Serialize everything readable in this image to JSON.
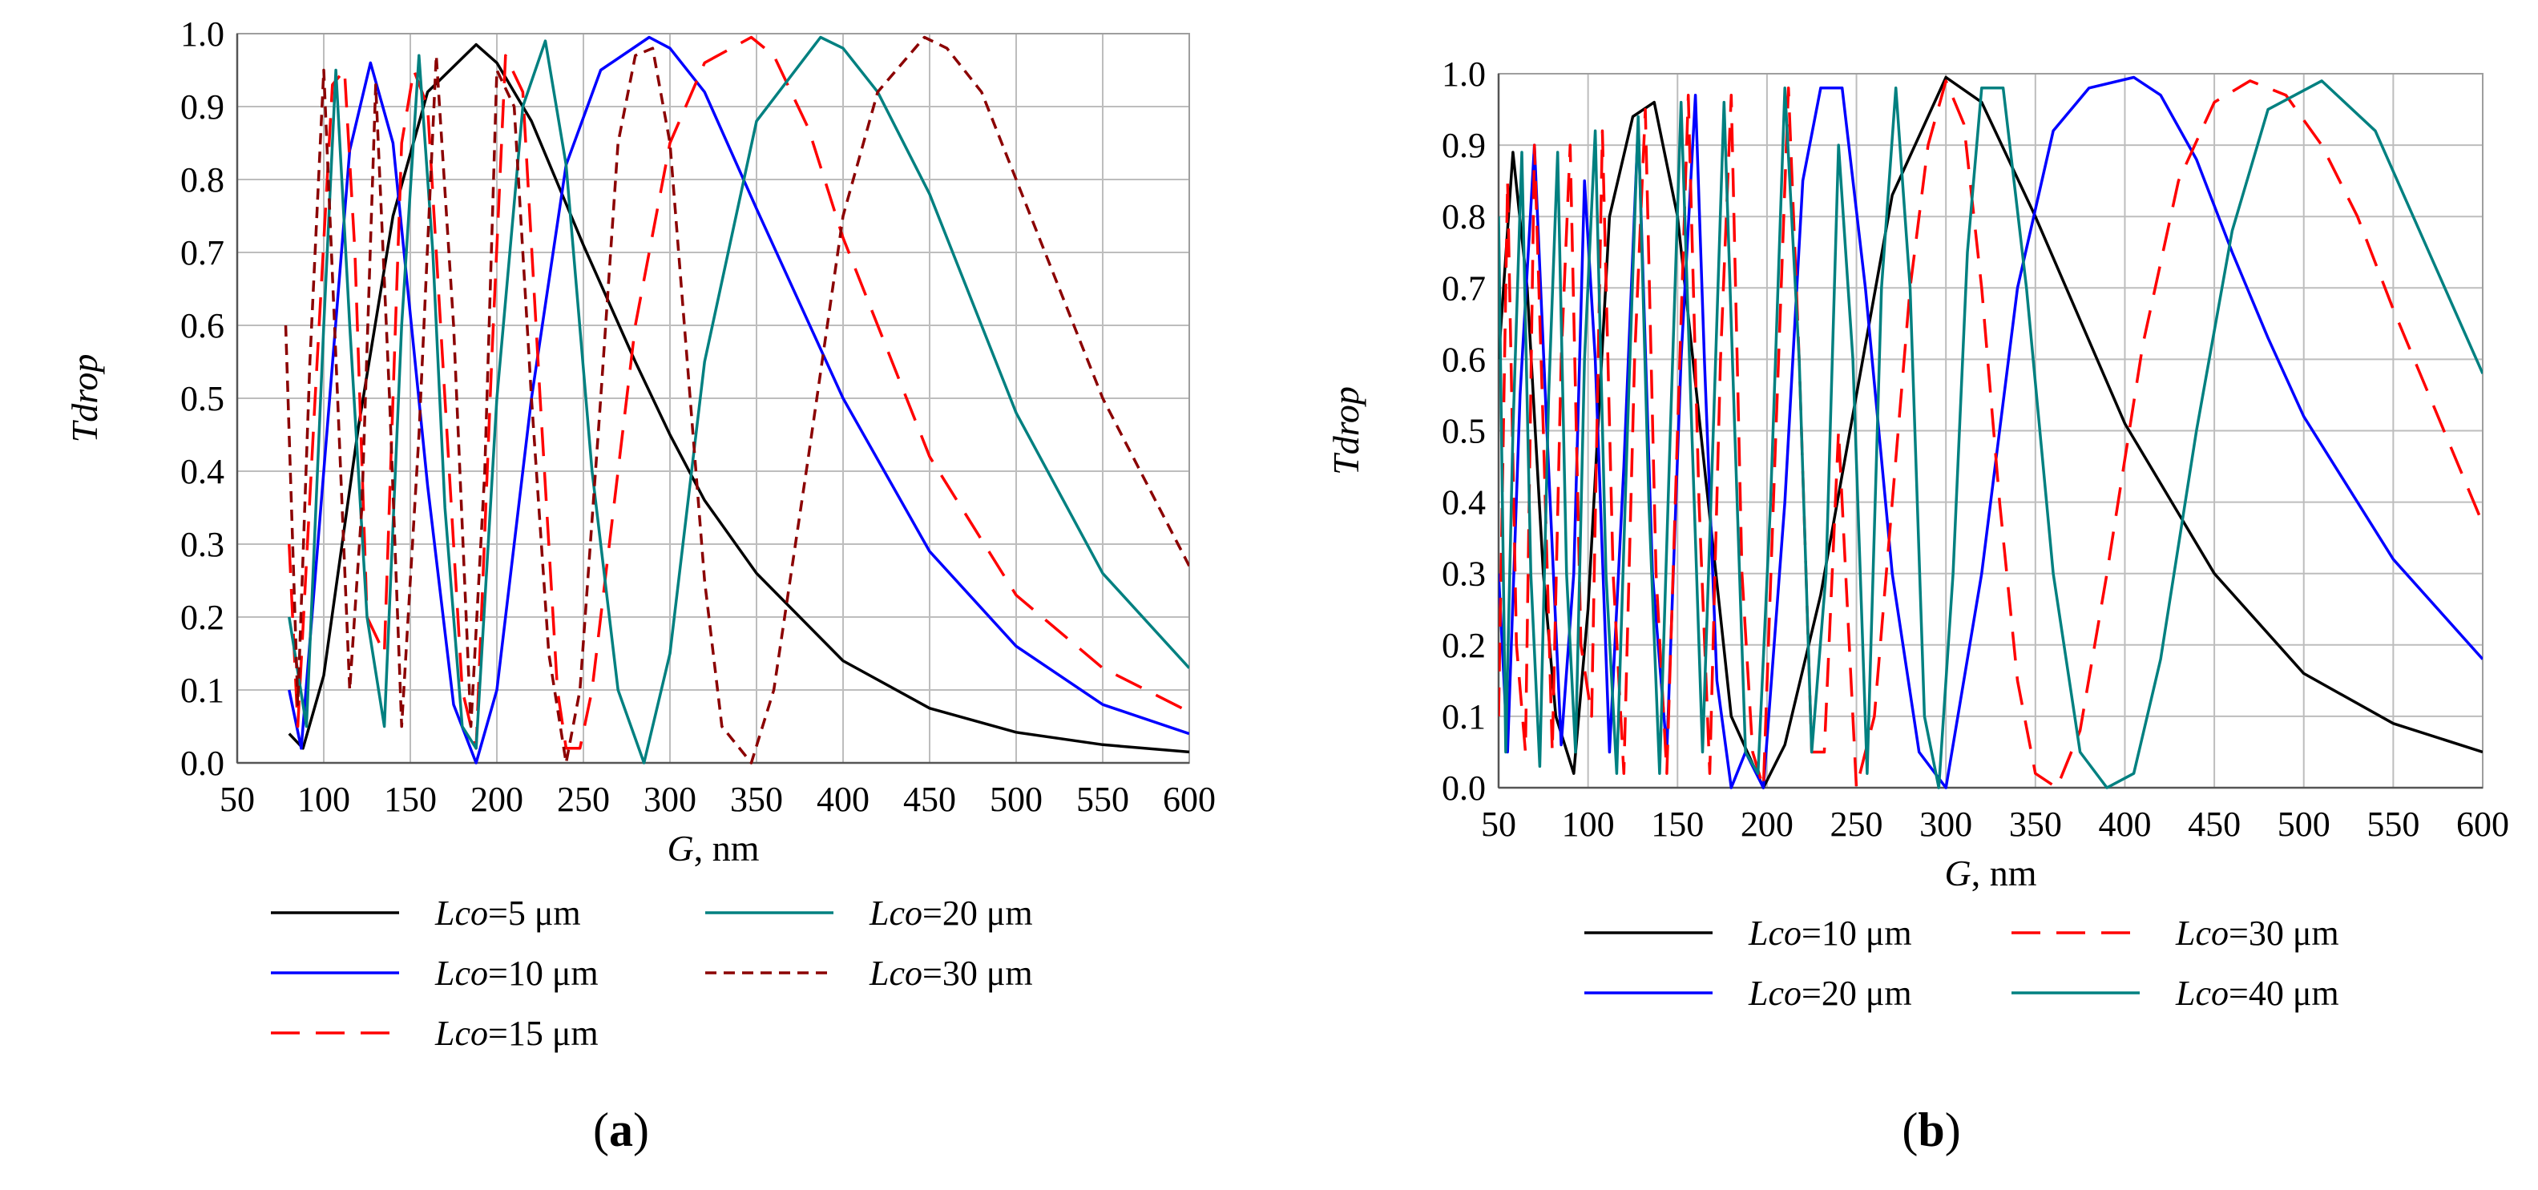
{
  "chart_data": [
    {
      "type": "line",
      "panel_label_open": "(",
      "panel_label_letter": "a",
      "panel_label_close": ")",
      "xlabel_var": "G",
      "xlabel_unit": ", nm",
      "ylabel": "Tdrop",
      "xlim": [
        50,
        600
      ],
      "ylim": [
        0.0,
        1.0
      ],
      "x_ticks": [
        "50",
        "100",
        "150",
        "200",
        "250",
        "300",
        "350",
        "400",
        "450",
        "500",
        "550",
        "600"
      ],
      "y_ticks": [
        "0.0",
        "0.1",
        "0.2",
        "0.3",
        "0.4",
        "0.5",
        "0.6",
        "0.7",
        "0.8",
        "0.9",
        "1.0"
      ],
      "grid": true,
      "legend_position": "bottom",
      "series": [
        {
          "name_var": "Lco",
          "name_val": "=5 μm",
          "color": "#000000",
          "dash": "solid",
          "x": [
            80,
            88,
            100,
            120,
            140,
            160,
            188,
            200,
            220,
            250,
            280,
            300,
            320,
            350,
            400,
            450,
            500,
            550,
            600
          ],
          "y": [
            0.04,
            0.02,
            0.12,
            0.46,
            0.75,
            0.92,
            0.985,
            0.96,
            0.88,
            0.71,
            0.55,
            0.45,
            0.36,
            0.26,
            0.14,
            0.075,
            0.042,
            0.025,
            0.015
          ]
        },
        {
          "name_var": "Lco",
          "name_val": "=10 μm",
          "color": "#0000ff",
          "dash": "solid",
          "x": [
            80,
            87,
            100,
            115,
            127,
            140,
            160,
            175,
            188,
            200,
            220,
            240,
            260,
            288,
            300,
            320,
            350,
            400,
            450,
            500,
            550,
            600
          ],
          "y": [
            0.1,
            0.02,
            0.4,
            0.84,
            0.96,
            0.85,
            0.38,
            0.08,
            0.0,
            0.1,
            0.5,
            0.82,
            0.95,
            0.995,
            0.98,
            0.92,
            0.76,
            0.5,
            0.29,
            0.16,
            0.08,
            0.04
          ]
        },
        {
          "name_var": "Lco",
          "name_val": "=15 μm",
          "color": "#ff0000",
          "dash": "long",
          "x": [
            80,
            85,
            95,
            105,
            112,
            118,
            125,
            135,
            145,
            152,
            160,
            170,
            180,
            188,
            197,
            205,
            215,
            225,
            235,
            240,
            248,
            255,
            265,
            280,
            300,
            320,
            347,
            360,
            380,
            400,
            450,
            500,
            550,
            600
          ],
          "y": [
            0.3,
            0.05,
            0.5,
            0.93,
            0.95,
            0.7,
            0.2,
            0.15,
            0.85,
            0.95,
            0.9,
            0.5,
            0.1,
            0.02,
            0.55,
            0.97,
            0.92,
            0.5,
            0.1,
            0.02,
            0.02,
            0.1,
            0.3,
            0.6,
            0.85,
            0.96,
            0.995,
            0.97,
            0.87,
            0.72,
            0.42,
            0.23,
            0.13,
            0.07
          ]
        },
        {
          "name_var": "Lco",
          "name_val": "=20 μm",
          "color": "#008080",
          "dash": "solid",
          "x": [
            80,
            90,
            100,
            107,
            115,
            125,
            135,
            145,
            155,
            163,
            170,
            180,
            188,
            200,
            215,
            228,
            240,
            255,
            270,
            285,
            300,
            320,
            350,
            387,
            400,
            420,
            450,
            500,
            550,
            600
          ],
          "y": [
            0.2,
            0.05,
            0.6,
            0.95,
            0.6,
            0.2,
            0.05,
            0.6,
            0.97,
            0.7,
            0.35,
            0.05,
            0.02,
            0.5,
            0.9,
            0.99,
            0.82,
            0.4,
            0.1,
            0.0,
            0.15,
            0.55,
            0.88,
            0.995,
            0.98,
            0.92,
            0.78,
            0.48,
            0.26,
            0.13
          ]
        },
        {
          "name_var": "Lco",
          "name_val": "=30 μm",
          "color": "#8b0000",
          "dash": "short",
          "x": [
            78,
            85,
            92,
            100,
            108,
            115,
            122,
            130,
            138,
            145,
            155,
            165,
            175,
            185,
            193,
            200,
            210,
            220,
            230,
            240,
            248,
            260,
            270,
            280,
            290,
            300,
            310,
            320,
            330,
            347,
            360,
            380,
            400,
            420,
            447,
            460,
            480,
            500,
            550,
            600
          ],
          "y": [
            0.6,
            0.08,
            0.55,
            0.95,
            0.5,
            0.1,
            0.35,
            0.93,
            0.5,
            0.05,
            0.45,
            0.97,
            0.6,
            0.05,
            0.4,
            0.95,
            0.9,
            0.5,
            0.15,
            0.0,
            0.1,
            0.5,
            0.85,
            0.97,
            0.98,
            0.85,
            0.55,
            0.25,
            0.05,
            0.0,
            0.1,
            0.42,
            0.75,
            0.92,
            0.995,
            0.98,
            0.92,
            0.8,
            0.5,
            0.27
          ]
        }
      ],
      "legend_order": [
        0,
        3,
        1,
        4,
        2
      ]
    },
    {
      "type": "line",
      "panel_label_open": "(",
      "panel_label_letter": "b",
      "panel_label_close": ")",
      "xlabel_var": "G",
      "xlabel_unit": ", nm",
      "ylabel": "Tdrop",
      "xlim": [
        50,
        600
      ],
      "ylim": [
        0.0,
        1.0
      ],
      "x_ticks": [
        "50",
        "100",
        "150",
        "200",
        "250",
        "300",
        "350",
        "400",
        "450",
        "500",
        "550",
        "600"
      ],
      "y_ticks": [
        "0.0",
        "0.1",
        "0.2",
        "0.3",
        "0.4",
        "0.5",
        "0.6",
        "0.7",
        "0.8",
        "0.9",
        "1.0"
      ],
      "grid": true,
      "legend_position": "bottom",
      "series": [
        {
          "name_var": "Lco",
          "name_val": "=10 μm",
          "color": "#000000",
          "dash": "solid",
          "x": [
            50,
            58,
            66,
            75,
            82,
            92,
            100,
            112,
            125,
            137,
            150,
            165,
            180,
            198,
            210,
            230,
            250,
            270,
            300,
            320,
            350,
            400,
            450,
            500,
            550,
            600
          ],
          "y": [
            0.6,
            0.89,
            0.7,
            0.3,
            0.1,
            0.02,
            0.25,
            0.8,
            0.94,
            0.96,
            0.8,
            0.45,
            0.1,
            0.0,
            0.06,
            0.27,
            0.55,
            0.83,
            0.995,
            0.96,
            0.8,
            0.51,
            0.3,
            0.16,
            0.09,
            0.05
          ]
        },
        {
          "name_var": "Lco",
          "name_val": "=20 μm",
          "color": "#0000ff",
          "dash": "solid",
          "x": [
            50,
            55,
            62,
            70,
            77,
            85,
            92,
            98,
            104,
            112,
            120,
            128,
            136,
            144,
            152,
            160,
            165,
            172,
            180,
            188,
            198,
            210,
            220,
            230,
            242,
            255,
            270,
            285,
            300,
            320,
            340,
            360,
            380,
            405,
            420,
            440,
            460,
            480,
            500,
            550,
            600
          ],
          "y": [
            0.3,
            0.05,
            0.55,
            0.9,
            0.5,
            0.06,
            0.3,
            0.85,
            0.6,
            0.05,
            0.45,
            0.93,
            0.3,
            0.05,
            0.6,
            0.97,
            0.6,
            0.15,
            0.0,
            0.05,
            0.0,
            0.4,
            0.85,
            0.98,
            0.98,
            0.7,
            0.3,
            0.05,
            0.0,
            0.3,
            0.7,
            0.92,
            0.98,
            0.995,
            0.97,
            0.88,
            0.75,
            0.63,
            0.52,
            0.32,
            0.18
          ]
        },
        {
          "name_var": "Lco",
          "name_val": "=30 μm",
          "color": "#ff0000",
          "dash": "long",
          "x": [
            50,
            55,
            60,
            65,
            70,
            75,
            80,
            85,
            90,
            96,
            102,
            108,
            114,
            120,
            126,
            132,
            138,
            144,
            150,
            156,
            162,
            168,
            174,
            180,
            186,
            192,
            198,
            205,
            212,
            218,
            225,
            232,
            240,
            250,
            260,
            270,
            280,
            290,
            300,
            310,
            320,
            330,
            340,
            350,
            362,
            375,
            390,
            410,
            430,
            450,
            470,
            490,
            510,
            530,
            550,
            575,
            600
          ],
          "y": [
            0.1,
            0.85,
            0.2,
            0.05,
            0.9,
            0.5,
            0.05,
            0.6,
            0.9,
            0.2,
            0.1,
            0.92,
            0.3,
            0.02,
            0.6,
            0.95,
            0.3,
            0.02,
            0.5,
            0.97,
            0.4,
            0.02,
            0.6,
            0.97,
            0.3,
            0.05,
            0.0,
            0.5,
            0.98,
            0.6,
            0.05,
            0.05,
            0.5,
            0.0,
            0.1,
            0.4,
            0.7,
            0.9,
            0.99,
            0.93,
            0.7,
            0.4,
            0.15,
            0.02,
            0.0,
            0.08,
            0.3,
            0.62,
            0.85,
            0.96,
            0.99,
            0.97,
            0.9,
            0.8,
            0.67,
            0.52,
            0.37
          ]
        },
        {
          "name_var": "Lco",
          "name_val": "=40 μm",
          "color": "#008080",
          "dash": "solid",
          "x": [
            50,
            54,
            58,
            63,
            68,
            73,
            78,
            83,
            88,
            93,
            98,
            104,
            110,
            116,
            122,
            128,
            134,
            140,
            146,
            152,
            158,
            164,
            170,
            176,
            182,
            188,
            195,
            202,
            210,
            218,
            225,
            233,
            240,
            248,
            256,
            264,
            272,
            280,
            288,
            296,
            304,
            312,
            320,
            332,
            345,
            360,
            375,
            390,
            405,
            420,
            440,
            460,
            480,
            510,
            540,
            570,
            600
          ],
          "y": [
            0.8,
            0.05,
            0.5,
            0.89,
            0.3,
            0.03,
            0.55,
            0.89,
            0.3,
            0.05,
            0.6,
            0.92,
            0.3,
            0.02,
            0.5,
            0.94,
            0.4,
            0.02,
            0.5,
            0.96,
            0.5,
            0.05,
            0.5,
            0.96,
            0.5,
            0.05,
            0.02,
            0.4,
            0.98,
            0.6,
            0.05,
            0.3,
            0.9,
            0.6,
            0.02,
            0.7,
            0.98,
            0.7,
            0.1,
            0.0,
            0.3,
            0.75,
            0.98,
            0.98,
            0.7,
            0.3,
            0.05,
            0.0,
            0.02,
            0.18,
            0.5,
            0.78,
            0.95,
            0.99,
            0.92,
            0.75,
            0.58
          ]
        }
      ],
      "legend_order": [
        0,
        2,
        1,
        3
      ]
    }
  ]
}
